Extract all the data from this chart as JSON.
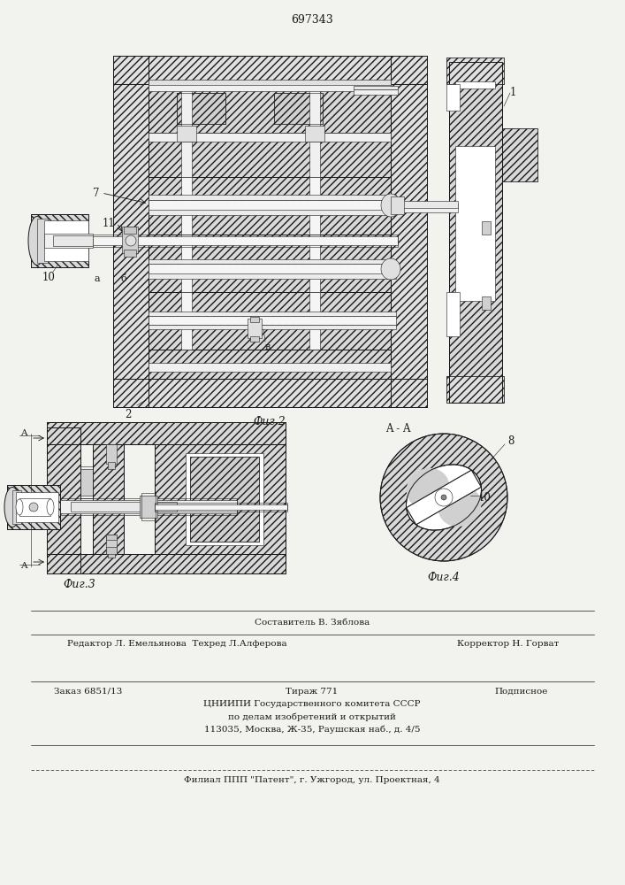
{
  "patent_number": "697343",
  "bg_color": "#f2f2ee",
  "line_color": "#1a1a1a",
  "hatch_color": "#333333",
  "footer_line1": "Составитель В. Зяблова",
  "footer_line2_left": "Редактор Л. Емельянова  Техред Л.Алферова",
  "footer_line2_right": "Корректор Н. Горват",
  "footer_line3_left": "Заказ 6851/13",
  "footer_line3_mid": "Тираж 771",
  "footer_line3_right": "Подписное",
  "footer_line4": "ЦНИИПИ Государственного комитета СССР",
  "footer_line5": "по делам изобретений и открытий",
  "footer_line6": "113035, Москва, Ж-35, Раушская наб., д. 4/5",
  "footer_line7": "Филиал ППП \"Патент\", г. Ужгород, ул. Проектная, 4",
  "fig2_caption": "Фиг.2",
  "fig3_caption": "Фиг.3",
  "fig4_caption": "Фиг.4",
  "fig4_section": "A - A"
}
